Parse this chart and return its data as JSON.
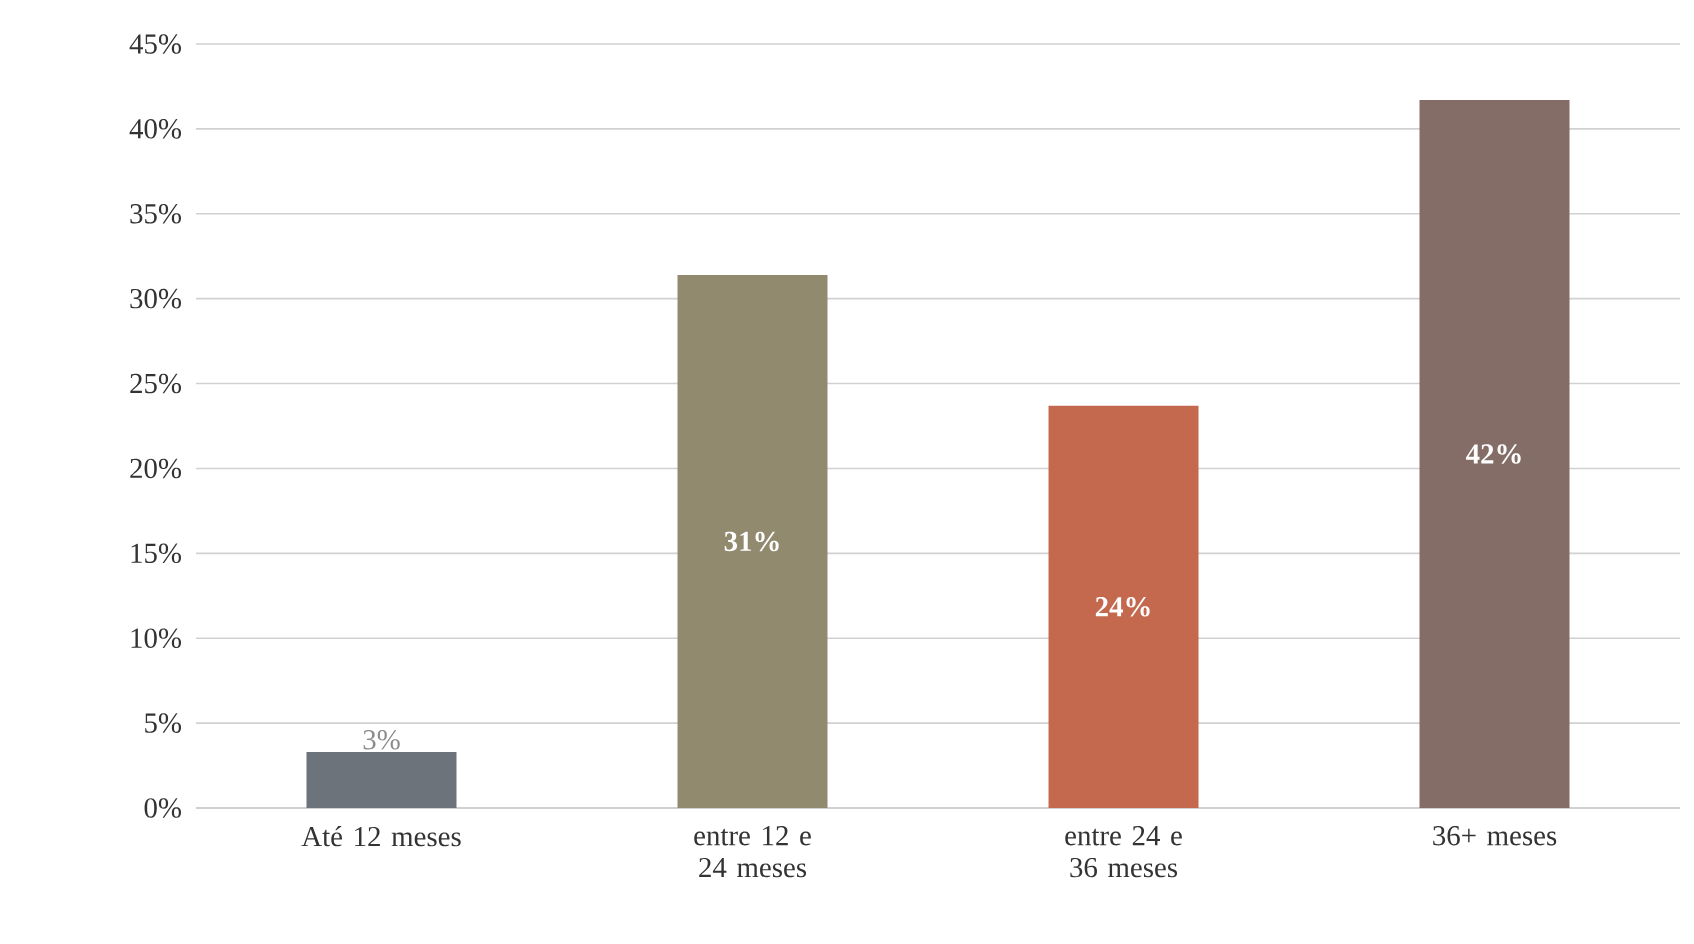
{
  "chart_data": {
    "type": "bar",
    "categories": [
      "Até 12 meses",
      "entre 12 e 24 meses",
      "entre 24 e 36 meses",
      "36+ meses"
    ],
    "values": [
      3.3,
      31.4,
      23.7,
      41.7
    ],
    "colors": [
      "#6d737b",
      "#918a6e",
      "#c4694e",
      "#856d67"
    ],
    "value_labels": [
      "3%",
      "31%",
      "24%",
      "42%"
    ],
    "ylim": [
      0,
      45
    ],
    "yticks": [
      {
        "value": 0,
        "label": "0%"
      },
      {
        "value": 5,
        "label": "5%"
      },
      {
        "value": 10,
        "label": "10%"
      },
      {
        "value": 15,
        "label": "15%"
      },
      {
        "value": 20,
        "label": "20%"
      },
      {
        "value": 25,
        "label": "25%"
      },
      {
        "value": 30,
        "label": "30%"
      },
      {
        "value": 35,
        "label": "35%"
      },
      {
        "value": 40,
        "label": "40%"
      },
      {
        "value": 45,
        "label": "45%"
      }
    ],
    "grid": "y"
  }
}
